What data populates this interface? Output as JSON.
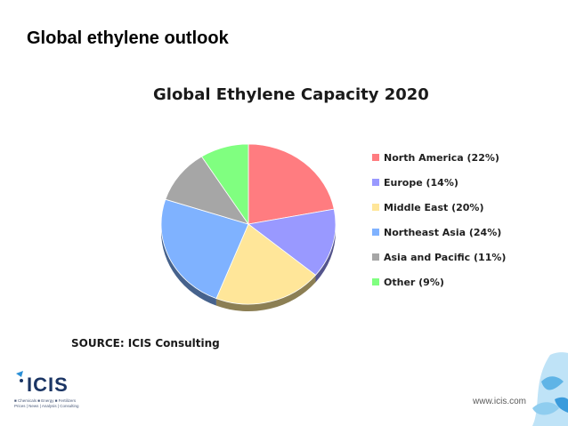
{
  "slide": {
    "title": "Global ethylene outlook",
    "source": "SOURCE: ICIS Consulting",
    "url": "www.icis.com"
  },
  "logo": {
    "word": "ICIS",
    "tagline": "■ Chemicals ■ Energy ■ Fertilizers",
    "tagline2": "Prices | News | Analysis | Consulting"
  },
  "chart_data": {
    "type": "pie",
    "title": "Global Ethylene Capacity 2020",
    "legend_position": "right",
    "slices": [
      {
        "label": "North America (22%)",
        "value": 22,
        "color": "#ff7c80"
      },
      {
        "label": "Europe (14%)",
        "value": 14,
        "color": "#9999ff"
      },
      {
        "label": "Middle East (20%)",
        "value": 20,
        "color": "#ffe699"
      },
      {
        "label": "Northeast Asia (24%)",
        "value": 24,
        "color": "#7fb2ff"
      },
      {
        "label": "Asia and Pacific (11%)",
        "value": 11,
        "color": "#a6a6a6"
      },
      {
        "label": "Other (9%)",
        "value": 9,
        "color": "#80ff80"
      }
    ]
  }
}
